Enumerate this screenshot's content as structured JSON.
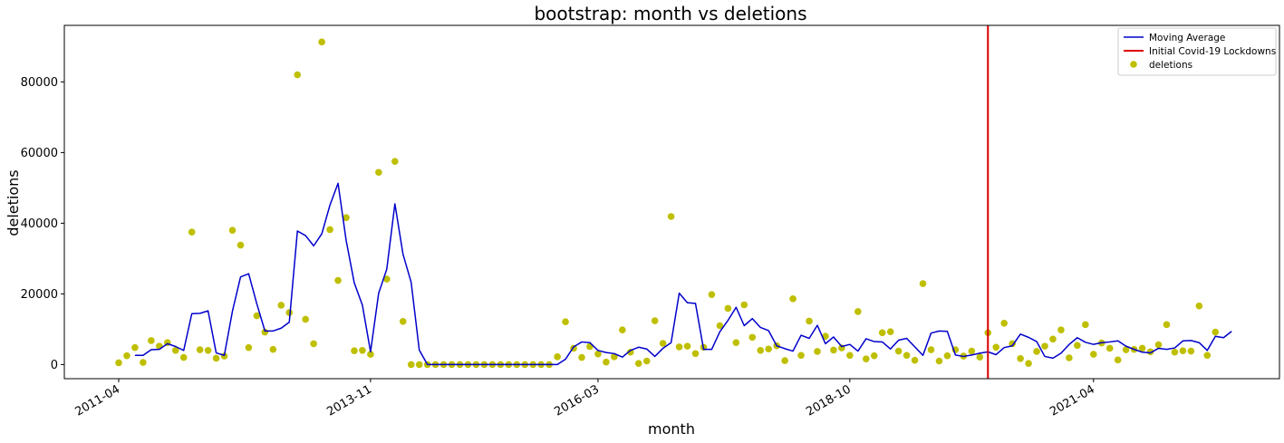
{
  "chart_data": {
    "type": "line+scatter",
    "title": "bootstrap: month vs deletions",
    "xlabel": "month",
    "ylabel": "deletions",
    "start_month": "2011-04",
    "x_ticks": [
      "2011-04",
      "2013-11",
      "2016-03",
      "2018-10",
      "2021-04"
    ],
    "y_ticks": [
      0,
      20000,
      40000,
      60000,
      80000
    ],
    "ylim": [
      -4000,
      96000
    ],
    "grid": false,
    "legend_position": "top-right",
    "legend": [
      "Moving Average",
      "Initial Covid-19 Lockdowns",
      "deletions"
    ],
    "colors": {
      "moving_average": "#0000cc",
      "lockdown": "#dd0000",
      "deletions": "#bfbf00"
    },
    "vline": {
      "label": "Initial Covid-19 Lockdowns",
      "x": "2020-03"
    },
    "series": [
      {
        "name": "deletions",
        "kind": "scatter",
        "values": [
          500,
          2500,
          4800,
          600,
          6800,
          5200,
          6200,
          4000,
          2000,
          37500,
          4200,
          4000,
          1800,
          2400,
          38000,
          33800,
          4800,
          13800,
          9200,
          4300,
          16800,
          14700,
          82000,
          12800,
          5900,
          91300,
          38200,
          23800,
          41600,
          3900,
          4000,
          2900,
          54400,
          24200,
          57500,
          12200,
          0,
          0,
          0,
          0,
          0,
          0,
          0,
          0,
          0,
          0,
          0,
          0,
          0,
          0,
          0,
          0,
          0,
          0,
          2200,
          12100,
          4600,
          2000,
          5100,
          3000,
          700,
          2200,
          9800,
          3500,
          300,
          1000,
          12400,
          6000,
          41900,
          5000,
          5200,
          3100,
          4900,
          19800,
          11000,
          15900,
          6200,
          16900,
          7700,
          4000,
          4400,
          5300,
          1100,
          18600,
          2600,
          12300,
          3700,
          8000,
          4100,
          4700,
          2600,
          15000,
          1600,
          2500,
          9000,
          9300,
          3800,
          2600,
          1200,
          22900,
          4200,
          1000,
          2500,
          4200,
          2400,
          3800,
          2100,
          9000,
          4900,
          11700,
          5900,
          1700,
          300,
          3700,
          5200,
          7200,
          9800,
          1900,
          5400,
          11300,
          2900,
          6100,
          4600,
          1300,
          4200,
          4300,
          4600,
          3600,
          5600,
          11300,
          3500,
          3900,
          3800,
          16600,
          2600,
          9200
        ]
      },
      {
        "name": "Moving Average",
        "kind": "line",
        "start_index": 2,
        "values": [
          2600,
          2600,
          4200,
          4300,
          5900,
          5100,
          4000,
          14400,
          14500,
          15200,
          3300,
          2600,
          15100,
          24800,
          25700,
          17200,
          9500,
          9500,
          10300,
          12000,
          37800,
          36500,
          33600,
          37000,
          45100,
          51300,
          35100,
          23100,
          16800,
          3600,
          20200,
          27000,
          45500,
          31200,
          23300,
          4100,
          0,
          0,
          0,
          0,
          0,
          0,
          0,
          0,
          0,
          0,
          0,
          0,
          0,
          0,
          0,
          0,
          0,
          1500,
          5000,
          6400,
          6200,
          4000,
          3400,
          3100,
          2100,
          4000,
          4900,
          4400,
          2300,
          4600,
          6200,
          20200,
          17500,
          17300,
          4300,
          4300,
          9300,
          12500,
          16200,
          11000,
          13000,
          10500,
          9600,
          5300,
          4500,
          3800,
          8300,
          7400,
          11100,
          5900,
          7800,
          5100,
          5700,
          3800,
          7300,
          6500,
          6400,
          4400,
          6900,
          7400,
          5000,
          2600,
          8900,
          9500,
          9400,
          2700,
          2300,
          2700,
          3200,
          3600,
          2800,
          4800,
          5300,
          8600,
          7700,
          6500,
          2300,
          1800,
          3200,
          5700,
          7600,
          6300,
          5700,
          6200,
          6400,
          6700,
          5200,
          4300,
          3500,
          3300,
          4600,
          4300,
          4700,
          6700,
          6800,
          6200,
          4000,
          8000,
          7600,
          9400
        ]
      }
    ]
  }
}
